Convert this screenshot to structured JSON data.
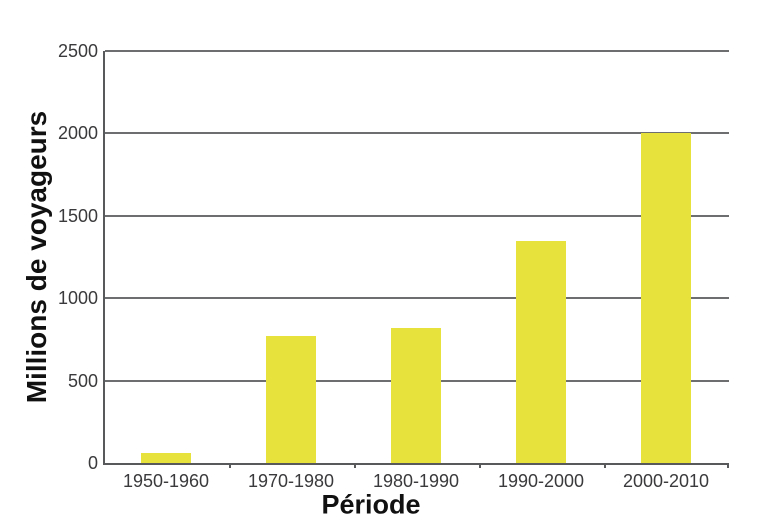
{
  "chart_data": {
    "type": "bar",
    "title": "",
    "categories": [
      "1950-1960",
      "1970-1980",
      "1980-1990",
      "1990-2000",
      "2000-2010"
    ],
    "values": [
      60,
      770,
      820,
      1350,
      2000
    ],
    "xlabel": "Période",
    "ylabel": "Millions de voyageurs",
    "yticks": [
      0,
      500,
      1000,
      1500,
      2000,
      2500
    ],
    "ylim": [
      0,
      2500
    ],
    "grid": true,
    "legend_position": "none",
    "bar_color": "#e8e33c",
    "gridline_color": "#6d6e70",
    "axis_color": "#58595b",
    "tick_label_color": "#3a3a3c",
    "axis_title_color": "#111111"
  }
}
